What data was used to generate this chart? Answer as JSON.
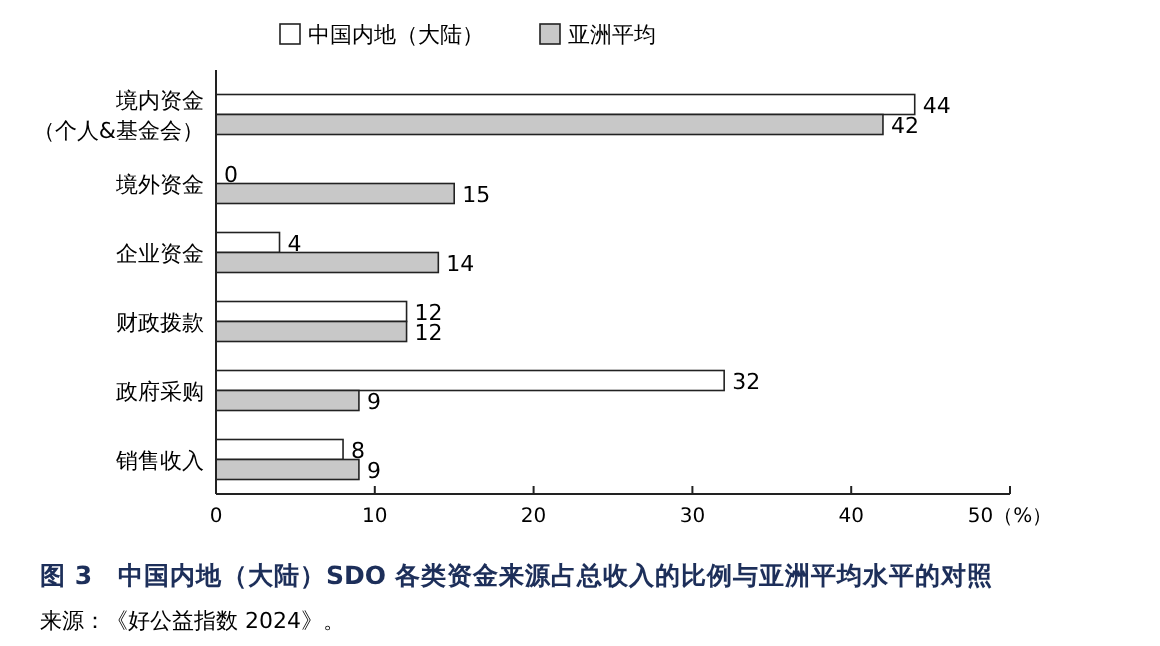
{
  "chart_data": {
    "type": "bar",
    "orientation": "horizontal",
    "title": "图 3　中国内地（大陆）SDO 各类资金来源占总收入的比例与亚洲平均水平的对照",
    "annotations": [
      "来源：《好公益指数 2024》。"
    ],
    "categories": [
      "境内资金（个人&基金会）",
      "境外资金",
      "企业资金",
      "财政拨款",
      "政府采购",
      "销售收入"
    ],
    "series": [
      {
        "name": "中国内地（大陆）",
        "color": "#ffffff",
        "values": [
          44,
          0,
          4,
          12,
          32,
          8
        ]
      },
      {
        "name": "亚洲平均",
        "color": "#c8c8c8",
        "values": [
          42,
          15,
          14,
          12,
          9,
          9
        ]
      }
    ],
    "xlim": [
      0,
      50
    ],
    "xticks": [
      0,
      10,
      20,
      30,
      40,
      {
        "value": 50,
        "label": "50（%）"
      }
    ],
    "data_labels": true,
    "legend": "top",
    "grid": false
  }
}
